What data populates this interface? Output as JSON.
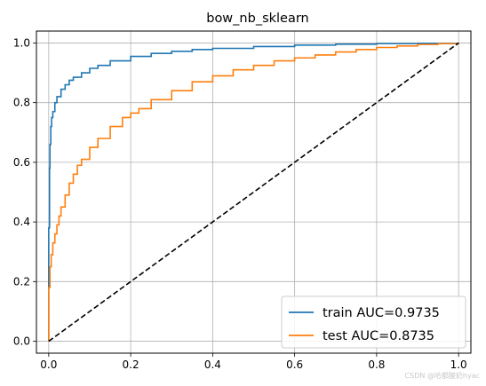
{
  "chart_data": {
    "type": "line",
    "title": "bow_nb_sklearn",
    "xlabel": "",
    "ylabel": "",
    "xlim": [
      -0.03,
      1.03
    ],
    "ylim": [
      -0.04,
      1.04
    ],
    "x_ticks": [
      0.0,
      0.2,
      0.4,
      0.6,
      0.8,
      1.0
    ],
    "y_ticks": [
      0.0,
      0.2,
      0.4,
      0.6,
      0.8,
      1.0
    ],
    "x_tick_labels": [
      "0.0",
      "0.2",
      "0.4",
      "0.6",
      "0.8",
      "1.0"
    ],
    "y_tick_labels": [
      "0.0",
      "0.2",
      "0.4",
      "0.6",
      "0.8",
      "1.0"
    ],
    "grid": true,
    "legend_position": "bottom-right",
    "series": [
      {
        "name": "train AUC=0.9735",
        "color": "#1f77b4",
        "style": "solid",
        "x": [
          0.0,
          0.0,
          0.002,
          0.003,
          0.005,
          0.007,
          0.01,
          0.015,
          0.02,
          0.03,
          0.04,
          0.05,
          0.06,
          0.08,
          0.1,
          0.12,
          0.15,
          0.2,
          0.25,
          0.3,
          0.35,
          0.4,
          0.5,
          0.6,
          0.7,
          0.8,
          0.9,
          1.0
        ],
        "y": [
          0.0,
          0.38,
          0.58,
          0.66,
          0.72,
          0.75,
          0.77,
          0.8,
          0.82,
          0.845,
          0.86,
          0.875,
          0.885,
          0.9,
          0.915,
          0.925,
          0.94,
          0.955,
          0.965,
          0.972,
          0.978,
          0.982,
          0.988,
          0.993,
          0.996,
          0.998,
          0.999,
          1.0
        ]
      },
      {
        "name": "test AUC=0.8735",
        "color": "#ff7f0e",
        "style": "solid",
        "x": [
          0.0,
          0.0,
          0.003,
          0.006,
          0.01,
          0.015,
          0.02,
          0.025,
          0.03,
          0.04,
          0.05,
          0.06,
          0.07,
          0.08,
          0.1,
          0.12,
          0.15,
          0.18,
          0.2,
          0.22,
          0.25,
          0.3,
          0.35,
          0.4,
          0.45,
          0.5,
          0.55,
          0.6,
          0.65,
          0.7,
          0.75,
          0.8,
          0.85,
          0.9,
          0.95,
          1.0
        ],
        "y": [
          0.0,
          0.18,
          0.25,
          0.29,
          0.33,
          0.36,
          0.39,
          0.42,
          0.45,
          0.49,
          0.53,
          0.56,
          0.59,
          0.61,
          0.65,
          0.68,
          0.72,
          0.75,
          0.765,
          0.78,
          0.81,
          0.84,
          0.87,
          0.89,
          0.91,
          0.925,
          0.94,
          0.95,
          0.96,
          0.97,
          0.978,
          0.985,
          0.99,
          0.995,
          0.998,
          1.0
        ]
      },
      {
        "name": "",
        "color": "#000000",
        "style": "dashed",
        "x": [
          0.0,
          1.0
        ],
        "y": [
          0.0,
          1.0
        ]
      }
    ]
  },
  "watermark": "CSDN @哈都酸奶hyac"
}
